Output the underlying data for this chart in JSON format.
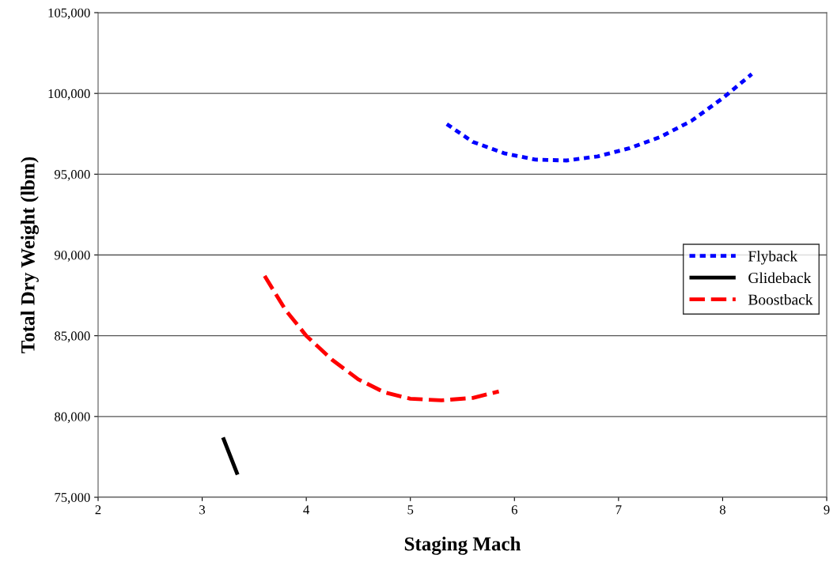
{
  "chart_data": {
    "type": "line",
    "xlabel": "Staging Mach",
    "ylabel": "Total Dry Weight (lbm)",
    "xlim": [
      2,
      9
    ],
    "xticks": [
      2,
      3,
      4,
      5,
      6,
      7,
      8,
      9
    ],
    "ylim": [
      75000,
      105000
    ],
    "yticks": [
      {
        "value": 75000,
        "label": "75,000"
      },
      {
        "value": 80000,
        "label": "80,000"
      },
      {
        "value": 85000,
        "label": "85,000"
      },
      {
        "value": 90000,
        "label": "90,000"
      },
      {
        "value": 95000,
        "label": "95,000"
      },
      {
        "value": 100000,
        "label": "100,000"
      },
      {
        "value": 105000,
        "label": "105,000"
      }
    ],
    "grid": "y",
    "legend": "right",
    "marker": "none",
    "series": [
      {
        "name": "Flyback",
        "color": "#0000ff",
        "line_style": "dotted",
        "x": [
          5.35,
          5.6,
          5.9,
          6.2,
          6.5,
          6.8,
          7.1,
          7.4,
          7.7,
          8.0,
          8.28
        ],
        "values": [
          98100,
          97000,
          96300,
          95900,
          95850,
          96100,
          96600,
          97300,
          98300,
          99700,
          101200
        ]
      },
      {
        "name": "Glideback",
        "color": "#000000",
        "line_style": "solid",
        "x": [
          3.2,
          3.34
        ],
        "values": [
          78700,
          76400
        ]
      },
      {
        "name": "Boostback",
        "color": "#ff0000",
        "line_style": "dashed",
        "x": [
          3.6,
          3.8,
          4.0,
          4.25,
          4.5,
          4.75,
          5.0,
          5.3,
          5.6,
          5.85
        ],
        "values": [
          88700,
          86600,
          85000,
          83500,
          82300,
          81500,
          81100,
          81000,
          81150,
          81550
        ]
      }
    ]
  }
}
